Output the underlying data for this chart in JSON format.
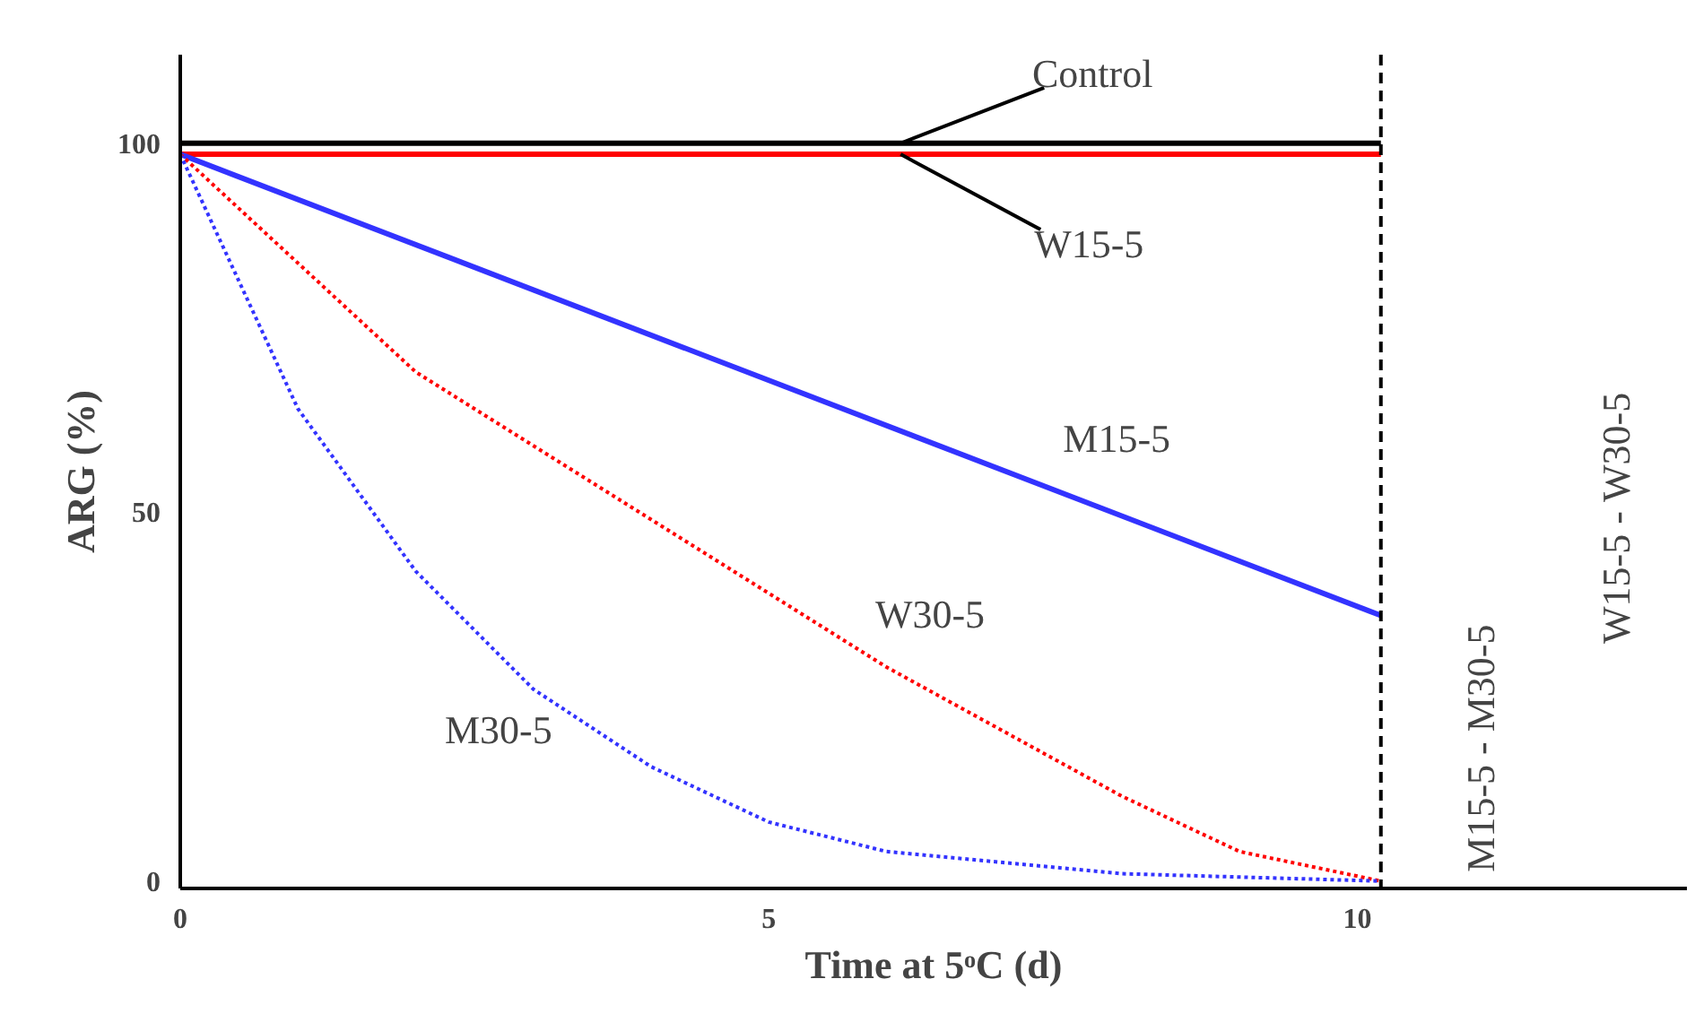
{
  "chart_data": {
    "type": "line",
    "xlabel": "Time at 5ᵒC (d)",
    "ylabel": "ARG (%)",
    "xlim": [
      0,
      12.8
    ],
    "ylim": [
      -1,
      112
    ],
    "xticks": [
      0,
      5,
      10
    ],
    "yticks": [
      0,
      50,
      100
    ],
    "grid": false,
    "legend": false,
    "marker": "none",
    "series": [
      {
        "name": "Control",
        "color": "#000000",
        "line_style": "solid",
        "x": [
          0,
          10.2
        ],
        "values": [
          100,
          100
        ]
      },
      {
        "name": "W15-5",
        "color": "#ff0000",
        "line_style": "solid",
        "x": [
          0,
          10.2
        ],
        "values": [
          98.5,
          98.5
        ]
      },
      {
        "name": "M15-5",
        "color": "#3333ff",
        "line_style": "solid",
        "x": [
          0,
          10.2
        ],
        "values": [
          98.5,
          36
        ]
      },
      {
        "name": "W30-5",
        "color": "#ff0000",
        "line_style": "dotted",
        "x": [
          0,
          2,
          4,
          6,
          8,
          9,
          10.2
        ],
        "values": [
          98.5,
          69,
          49,
          29,
          11.5,
          4,
          0
        ]
      },
      {
        "name": "M30-5",
        "color": "#3333ff",
        "line_style": "dotted",
        "x": [
          0,
          1,
          2,
          3,
          4,
          5,
          6,
          8,
          10.2
        ],
        "values": [
          98.5,
          64,
          42,
          26,
          15.5,
          8,
          4,
          1,
          0
        ]
      }
    ],
    "ref_lines": [
      {
        "axis": "x",
        "value": 10.2,
        "color": "#000000",
        "line_style": "dashed"
      }
    ],
    "annotations": [
      "M15-5 - M30-5",
      "W15-5 - W30-5"
    ]
  }
}
